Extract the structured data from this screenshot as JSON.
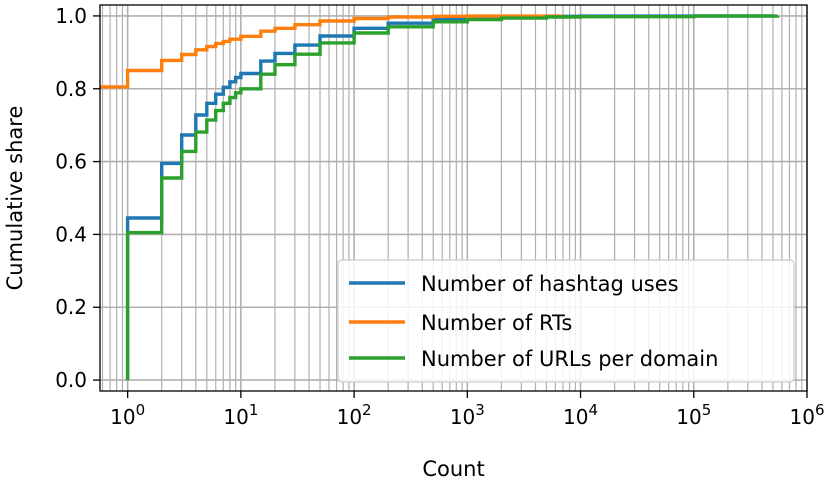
{
  "chart_data": {
    "type": "line",
    "xlabel": "Count",
    "ylabel": "Cumulative share",
    "xscale": "log",
    "xlim": [
      0.57,
      1000000
    ],
    "ylim": [
      -0.03,
      1.03
    ],
    "grid": true,
    "legend_position": "bottom-right",
    "x_ticks": [
      {
        "base": "10",
        "exp": "0",
        "value": 1
      },
      {
        "base": "10",
        "exp": "1",
        "value": 10
      },
      {
        "base": "10",
        "exp": "2",
        "value": 100
      },
      {
        "base": "10",
        "exp": "3",
        "value": 1000
      },
      {
        "base": "10",
        "exp": "4",
        "value": 10000
      },
      {
        "base": "10",
        "exp": "5",
        "value": 100000
      },
      {
        "base": "10",
        "exp": "6",
        "value": 1000000
      }
    ],
    "y_ticks": [
      "0.0",
      "0.2",
      "0.4",
      "0.6",
      "0.8",
      "1.0"
    ],
    "y_tick_values": [
      0.0,
      0.2,
      0.4,
      0.6,
      0.8,
      1.0
    ],
    "series": [
      {
        "name": "Number of hashtag uses",
        "color": "#1f77b4",
        "x": [
          1,
          2,
          3,
          4,
          5,
          6,
          7,
          8,
          9,
          10,
          15,
          20,
          30,
          50,
          100,
          200,
          500,
          1000,
          2000,
          5000,
          10000,
          100000,
          500000
        ],
        "y": [
          0.445,
          0.595,
          0.673,
          0.728,
          0.76,
          0.785,
          0.804,
          0.819,
          0.831,
          0.842,
          0.876,
          0.897,
          0.92,
          0.945,
          0.966,
          0.98,
          0.991,
          0.995,
          0.997,
          0.999,
          0.9995,
          1.0,
          1.0
        ]
      },
      {
        "name": "Number of RTs",
        "color": "#ff7f0e",
        "x": [
          0.57,
          1,
          2,
          3,
          4,
          5,
          6,
          7,
          8,
          10,
          15,
          20,
          30,
          50,
          100,
          200,
          500,
          1000,
          7000
        ],
        "y": [
          0.805,
          0.85,
          0.878,
          0.894,
          0.907,
          0.916,
          0.924,
          0.93,
          0.936,
          0.944,
          0.958,
          0.966,
          0.976,
          0.986,
          0.993,
          0.997,
          0.999,
          0.9995,
          1.0
        ]
      },
      {
        "name": "Number of URLs per domain",
        "color": "#2ca02c",
        "x": [
          1,
          2,
          3,
          4,
          5,
          6,
          7,
          8,
          9,
          10,
          15,
          20,
          30,
          50,
          100,
          200,
          500,
          1000,
          2000,
          5000,
          10000,
          100000,
          550000
        ],
        "y": [
          0.405,
          0.555,
          0.628,
          0.681,
          0.714,
          0.74,
          0.76,
          0.776,
          0.789,
          0.8,
          0.84,
          0.866,
          0.895,
          0.926,
          0.953,
          0.97,
          0.984,
          0.99,
          0.994,
          0.997,
          0.998,
          0.9995,
          1.0
        ]
      }
    ]
  }
}
